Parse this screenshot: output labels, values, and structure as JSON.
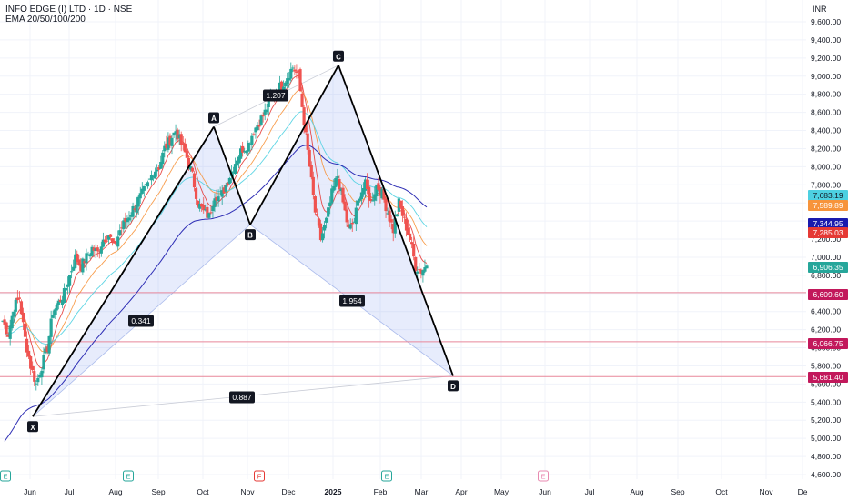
{
  "header": {
    "symbol_line": "INFO EDGE (I) LTD · 1D · NSE",
    "indicator_line": "EMA 20/50/100/200",
    "currency": "INR"
  },
  "chart_data": {
    "type": "candlestick",
    "x_axis_ticks": [
      "Jun",
      "Jul",
      "Aug",
      "Sep",
      "Oct",
      "Nov",
      "Dec",
      "2025",
      "Feb",
      "Mar",
      "Apr",
      "May",
      "Jun",
      "Jul",
      "Aug",
      "Sep",
      "Oct",
      "Nov",
      "De"
    ],
    "y_axis_ticks": [
      "9,600.00",
      "9,400.00",
      "9,200.00",
      "9,000.00",
      "8,800.00",
      "8,600.00",
      "8,400.00",
      "8,200.00",
      "8,000.00",
      "7,800.00",
      "7,600.00",
      "7,400.00",
      "7,200.00",
      "7,000.00",
      "6,800.00",
      "6,600.00",
      "6,400.00",
      "6,200.00",
      "6,000.00",
      "5,800.00",
      "5,600.00",
      "5,400.00",
      "5,200.00",
      "5,000.00",
      "4,800.00",
      "4,600.00"
    ],
    "ylim": [
      4560,
      9730
    ],
    "price_labels": [
      {
        "value": 7683.19,
        "text": "7,683.19",
        "color": "#4dd0e1",
        "text_color": "#131722"
      },
      {
        "value": 7589.89,
        "text": "7,589.89",
        "color": "#f7943b",
        "text_color": "#ffffff"
      },
      {
        "value": 7344.95,
        "text": "7,344.95",
        "color": "#1a1aad",
        "text_color": "#ffffff"
      },
      {
        "value": 7285.03,
        "text": "7,285.03",
        "color": "#e53935",
        "text_color": "#ffffff"
      },
      {
        "value": 6906.35,
        "text": "6,906.35",
        "color": "#26a69a",
        "text_color": "#ffffff"
      },
      {
        "value": 6609.6,
        "text": "6,609.60",
        "color": "#c2185b",
        "text_color": "#ffffff"
      },
      {
        "value": 6066.75,
        "text": "6,066.75",
        "color": "#c2185b",
        "text_color": "#ffffff"
      },
      {
        "value": 5681.4,
        "text": "5,681.40",
        "color": "#c2185b",
        "text_color": "#ffffff"
      }
    ],
    "horizontal_levels": [
      6609.6,
      6066.75,
      5681.4
    ],
    "pattern_points": [
      {
        "label": "X",
        "value": 5240
      },
      {
        "label": "A",
        "value": 8440
      },
      {
        "label": "B",
        "value": 7360
      },
      {
        "label": "C",
        "value": 9120
      },
      {
        "label": "D",
        "value": 5690
      }
    ],
    "ratio_labels": [
      "0.341",
      "1.207",
      "1.954",
      "0.887"
    ],
    "event_markers": [
      "E",
      "E",
      "F",
      "E",
      "E"
    ],
    "ohlc_path": [
      6300,
      6150,
      6450,
      6550,
      6100,
      5800,
      5600,
      5800,
      6000,
      6400,
      6500,
      6600,
      6800,
      7000,
      6900,
      7000,
      7100,
      7050,
      7200,
      7250,
      7100,
      7300,
      7400,
      7500,
      7600,
      7700,
      7800,
      7950,
      8000,
      8200,
      8300,
      8400,
      8250,
      8100,
      7900,
      7600,
      7500,
      7450,
      7700,
      7650,
      7800,
      7950,
      8100,
      8200,
      8250,
      8400,
      8500,
      8600,
      8750,
      8850,
      8900,
      9000,
      9100,
      9000,
      8500,
      8000,
      7500,
      7200,
      7400,
      7700,
      7900,
      7600,
      7300,
      7400,
      7700,
      7800,
      7600,
      7800,
      7700,
      7500,
      7300,
      7600,
      7400,
      7200,
      6900,
      6850,
      6906.35
    ],
    "ema": [
      {
        "name": "EMA 20",
        "color": "#e53935",
        "last": 7285.03
      },
      {
        "name": "EMA 50",
        "color": "#f7943b",
        "last": 7589.89
      },
      {
        "name": "EMA 100",
        "color": "#4dd0e1",
        "last": 7683.19
      },
      {
        "name": "EMA 200",
        "color": "#1a1aad",
        "last": 7344.95
      }
    ]
  }
}
